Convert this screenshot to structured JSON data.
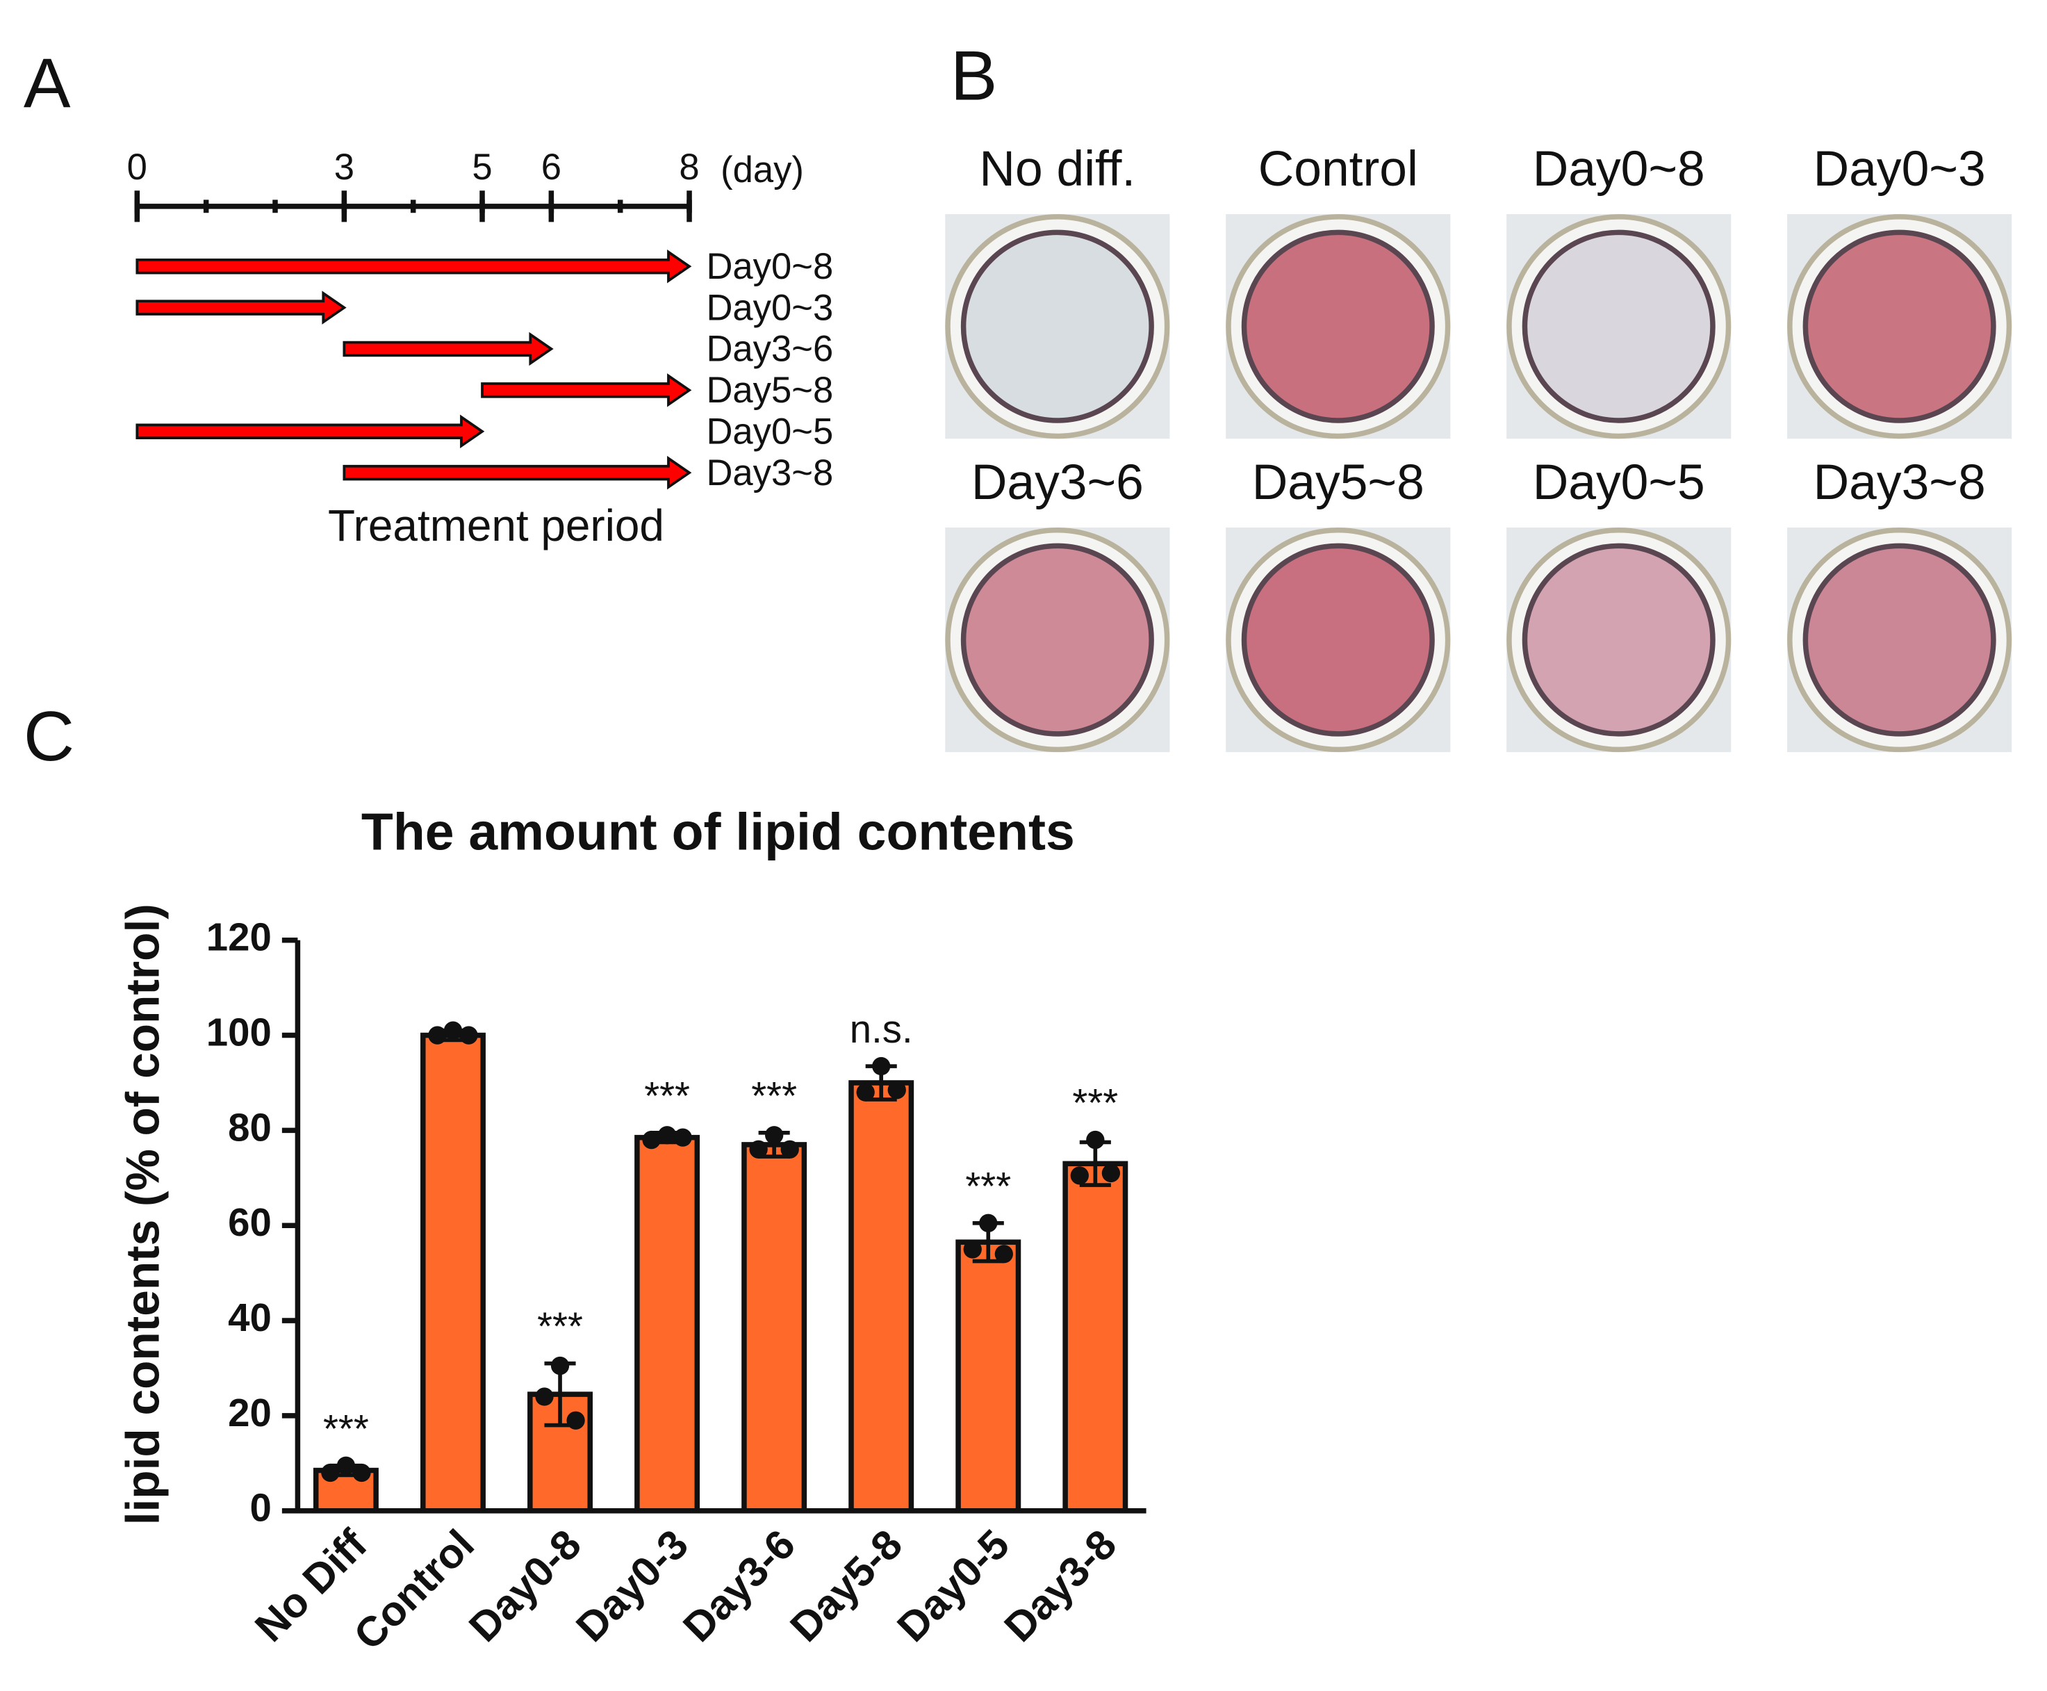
{
  "panel_labels": [
    "A",
    "B",
    "C"
  ],
  "timeline": {
    "xlim": [
      0,
      8
    ],
    "ticks": [
      0,
      3,
      5,
      6,
      8
    ],
    "unit": "(day)",
    "periods": [
      {
        "label": "Day0~8",
        "start": 0,
        "end": 8
      },
      {
        "label": "Day0~3",
        "start": 0,
        "end": 3
      },
      {
        "label": "Day3~6",
        "start": 3,
        "end": 6
      },
      {
        "label": "Day5~8",
        "start": 5,
        "end": 8
      },
      {
        "label": "Day0~5",
        "start": 0,
        "end": 5
      },
      {
        "label": "Day3~8",
        "start": 3,
        "end": 8
      }
    ],
    "caption": "Treatment period",
    "color": "#ff0000"
  },
  "wells": [
    {
      "label": "No diff.",
      "color": "#d8dde2"
    },
    {
      "label": "Control",
      "color": "#c9707f"
    },
    {
      "label": "Day0~8",
      "color": "#d9d6de"
    },
    {
      "label": "Day0~3",
      "color": "#c97582"
    },
    {
      "label": "Day3~6",
      "color": "#cf8a98"
    },
    {
      "label": "Day5~8",
      "color": "#c86f80"
    },
    {
      "label": "Day0~5",
      "color": "#d3a3b2"
    },
    {
      "label": "Day3~8",
      "color": "#cc8797"
    }
  ],
  "chart_data": {
    "type": "bar",
    "title": "The amount of lipid contents",
    "y_label": "lipid contents (% of control)",
    "categories": [
      "No Diff",
      "Control",
      "Day0-8",
      "Day0-3",
      "Day3-6",
      "Day5-8",
      "Day0-5",
      "Day3-8"
    ],
    "values": [
      8.5,
      100,
      24.5,
      78.5,
      77,
      90,
      56.5,
      73
    ],
    "errors": [
      1,
      1,
      6.5,
      1,
      2.5,
      3.5,
      4,
      4.5
    ],
    "points": [
      [
        9.5,
        8,
        8
      ],
      [
        101,
        100,
        100
      ],
      [
        30.5,
        24,
        19
      ],
      [
        79,
        78,
        78.5
      ],
      [
        79,
        76,
        76
      ],
      [
        93.5,
        88,
        88.5
      ],
      [
        60.5,
        55,
        54
      ],
      [
        78,
        70.5,
        71
      ]
    ],
    "significance": [
      "***",
      null,
      "***",
      "***",
      "***",
      "n.s.",
      "***",
      "***"
    ],
    "color": "#ff6a2b",
    "ylim": [
      0,
      120
    ],
    "yticks": [
      0,
      20,
      40,
      60,
      80,
      100,
      120
    ]
  }
}
